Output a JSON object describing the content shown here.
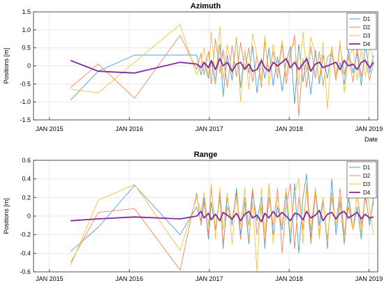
{
  "chart_data": [
    {
      "type": "line",
      "title": "Azimuth",
      "xlabel": "Date",
      "ylabel": "Positions [m]",
      "ylim": [
        -1.5,
        1.5
      ],
      "yticks": [
        1.5,
        1.0,
        0.5,
        0,
        -0.5,
        -1.0,
        -1.5
      ],
      "ytick_labels": [
        "1.5",
        "1.0",
        "0.5",
        "0",
        "-0.5",
        "-1.0",
        "-1.5"
      ],
      "xlim": [
        "2014-10-20",
        "2019-02-10"
      ],
      "xticks": [
        "2015-01-01",
        "2016-01-01",
        "2017-01-01",
        "2018-01-01",
        "2019-01-01"
      ],
      "xtick_labels": [
        "JAN 2015",
        "JAN 2016",
        "JAN 2017",
        "JAN 2018",
        "JAN 2019"
      ],
      "grid": true,
      "legend_position": "top-right",
      "colors": {
        "D1": "#4a9fd6",
        "D2": "#f0875a",
        "D3": "#f5c242",
        "D4": "#7e2a9c"
      },
      "series": [
        {
          "name": "D1",
          "x": [
            "2015-04-08",
            "2015-08-12",
            "2016-01-25",
            "2016-08-20",
            "2016-11-04",
            "2016-11-24",
            "2016-12-08",
            "2016-12-28",
            "2017-01-10",
            "2017-01-29",
            "2017-02-18",
            "2017-03-05",
            "2017-03-24",
            "2017-04-15",
            "2017-05-05",
            "2017-05-24",
            "2017-06-12",
            "2017-07-01",
            "2017-07-18",
            "2017-08-07",
            "2017-08-27",
            "2017-09-12",
            "2017-10-01",
            "2017-10-20",
            "2017-11-09",
            "2017-11-30",
            "2017-12-18",
            "2018-01-07",
            "2018-01-26",
            "2018-02-14",
            "2018-03-05",
            "2018-03-22",
            "2018-04-10",
            "2018-05-01",
            "2018-05-19",
            "2018-06-05",
            "2018-06-25",
            "2018-07-15",
            "2018-08-03",
            "2018-08-22",
            "2018-09-10",
            "2018-09-29",
            "2018-10-20",
            "2018-11-08",
            "2018-11-27",
            "2018-12-15",
            "2019-01-04",
            "2019-01-22"
          ],
          "values": [
            -0.95,
            -0.15,
            0.3,
            0.3,
            0.3,
            -0.25,
            0.1,
            -0.35,
            0.15,
            -0.5,
            0.6,
            -0.85,
            0.3,
            -0.4,
            0.8,
            -0.6,
            0.4,
            -0.2,
            0.55,
            -0.75,
            0.2,
            -0.35,
            0.5,
            -0.55,
            0.25,
            -0.7,
            0.1,
            0.55,
            -1.05,
            0.6,
            -0.45,
            0.25,
            -0.8,
            0.45,
            -0.5,
            0.3,
            -0.35,
            0.5,
            -0.3,
            0.1,
            -0.5,
            0.45,
            -0.2,
            0.35,
            -0.55,
            0.6,
            -0.2,
            0.3
          ]
        },
        {
          "name": "D2",
          "x": [
            "2015-04-08",
            "2015-08-12",
            "2016-01-25",
            "2016-08-20",
            "2016-11-04",
            "2016-11-24",
            "2016-12-08",
            "2016-12-28",
            "2017-01-10",
            "2017-01-29",
            "2017-02-18",
            "2017-03-05",
            "2017-03-24",
            "2017-04-15",
            "2017-05-05",
            "2017-05-24",
            "2017-06-12",
            "2017-07-01",
            "2017-07-18",
            "2017-08-07",
            "2017-08-27",
            "2017-09-12",
            "2017-10-01",
            "2017-10-20",
            "2017-11-09",
            "2017-11-30",
            "2017-12-18",
            "2018-01-07",
            "2018-01-26",
            "2018-02-14",
            "2018-03-05",
            "2018-03-22",
            "2018-04-10",
            "2018-05-01",
            "2018-05-19",
            "2018-06-05",
            "2018-06-25",
            "2018-07-15",
            "2018-08-03",
            "2018-08-22",
            "2018-09-10",
            "2018-09-29",
            "2018-10-20",
            "2018-11-08",
            "2018-11-27",
            "2018-12-15",
            "2019-01-04",
            "2019-01-22"
          ],
          "values": [
            -0.6,
            0.05,
            -0.9,
            0.85,
            -0.1,
            0.35,
            -0.25,
            0.4,
            -0.5,
            0.75,
            -0.2,
            0.45,
            -0.6,
            0.55,
            -0.3,
            0.65,
            -0.1,
            0.5,
            -0.45,
            0.3,
            -0.6,
            0.7,
            -0.2,
            0.4,
            -0.35,
            0.6,
            -0.5,
            0.3,
            0.85,
            -1.4,
            0.2,
            -0.6,
            0.55,
            -0.35,
            0.4,
            -0.55,
            0.25,
            0.35,
            -0.4,
            0.6,
            -0.25,
            0.3,
            -0.45,
            0.5,
            -0.3,
            0.2,
            -0.4,
            0.1
          ]
        },
        {
          "name": "D3",
          "x": [
            "2015-04-08",
            "2015-08-12",
            "2016-01-25",
            "2016-08-20",
            "2016-11-04",
            "2016-11-24",
            "2016-12-08",
            "2016-12-28",
            "2017-01-10",
            "2017-01-29",
            "2017-02-18",
            "2017-03-05",
            "2017-03-24",
            "2017-04-15",
            "2017-05-05",
            "2017-05-24",
            "2017-06-12",
            "2017-07-01",
            "2017-07-18",
            "2017-08-07",
            "2017-08-27",
            "2017-09-12",
            "2017-10-01",
            "2017-10-20",
            "2017-11-09",
            "2017-11-30",
            "2017-12-18",
            "2018-01-07",
            "2018-01-26",
            "2018-02-14",
            "2018-03-05",
            "2018-03-22",
            "2018-04-10",
            "2018-05-01",
            "2018-05-19",
            "2018-06-05",
            "2018-06-25",
            "2018-07-15",
            "2018-08-03",
            "2018-08-22",
            "2018-09-10",
            "2018-09-29",
            "2018-10-20",
            "2018-11-08",
            "2018-11-27",
            "2018-12-15",
            "2019-01-04",
            "2019-01-22"
          ],
          "values": [
            -0.65,
            -0.75,
            0.1,
            1.15,
            -0.25,
            0.05,
            0.5,
            -0.3,
            0.95,
            -0.45,
            1.1,
            -0.4,
            0.6,
            -0.2,
            0.8,
            -1.0,
            0.45,
            -0.65,
            0.9,
            0.3,
            -0.4,
            0.85,
            -0.55,
            0.6,
            -0.15,
            0.7,
            -0.3,
            0.45,
            0.65,
            -0.55,
            0.95,
            -0.2,
            0.8,
            0.3,
            -0.4,
            0.65,
            -1.2,
            0.55,
            -0.3,
            0.7,
            -0.75,
            0.2,
            0.5,
            -0.4,
            0.45,
            -0.3,
            0.6,
            0.1
          ]
        },
        {
          "name": "D4",
          "x": [
            "2015-04-08",
            "2015-08-12",
            "2016-01-25",
            "2016-08-20",
            "2016-11-04",
            "2016-11-24",
            "2016-12-08",
            "2016-12-28",
            "2017-01-10",
            "2017-01-29",
            "2017-02-18",
            "2017-03-05",
            "2017-03-24",
            "2017-04-15",
            "2017-05-05",
            "2017-05-24",
            "2017-06-12",
            "2017-07-01",
            "2017-07-18",
            "2017-08-07",
            "2017-08-27",
            "2017-09-12",
            "2017-10-01",
            "2017-10-20",
            "2017-11-09",
            "2017-11-30",
            "2017-12-18",
            "2018-01-07",
            "2018-01-26",
            "2018-02-14",
            "2018-03-05",
            "2018-03-22",
            "2018-04-10",
            "2018-05-01",
            "2018-05-19",
            "2018-06-05",
            "2018-06-25",
            "2018-07-15",
            "2018-08-03",
            "2018-08-22",
            "2018-09-10",
            "2018-09-29",
            "2018-10-20",
            "2018-11-08",
            "2018-11-27",
            "2018-12-15",
            "2019-01-04",
            "2019-01-22"
          ],
          "values": [
            0.15,
            -0.15,
            -0.2,
            0.1,
            0.05,
            -0.05,
            0.1,
            -0.05,
            0.15,
            -0.1,
            0.2,
            0.0,
            0.1,
            -0.15,
            0.05,
            0.1,
            -0.1,
            0.05,
            -0.15,
            -0.1,
            0.15,
            -0.05,
            -0.15,
            0.1,
            0.0,
            0.1,
            0.2,
            -0.05,
            0.1,
            -0.1,
            0.05,
            0.2,
            -0.15,
            0.05,
            0.1,
            -0.05,
            0.0,
            0.05,
            0.1,
            -0.1,
            0.15,
            0.0,
            0.05,
            -0.1,
            0.1,
            0.15,
            -0.05,
            0.1
          ]
        }
      ]
    },
    {
      "type": "line",
      "title": "Range",
      "xlabel": "",
      "ylabel": "Positions [m]",
      "ylim": [
        -0.6,
        0.6
      ],
      "yticks": [
        0.6,
        0.4,
        0.2,
        0,
        -0.2,
        -0.4,
        -0.6
      ],
      "ytick_labels": [
        "0.6",
        "0.4",
        "0.2",
        "0",
        "-0.2",
        "-0.4",
        "-0.6"
      ],
      "xlim": [
        "2014-10-20",
        "2019-02-10"
      ],
      "xticks": [
        "2015-01-01",
        "2016-01-01",
        "2017-01-01",
        "2018-01-01",
        "2019-01-01"
      ],
      "xtick_labels": [
        "JAN 2015",
        "JAN 2016",
        "JAN 2017",
        "JAN 2018",
        "JAN 2019"
      ],
      "grid": true,
      "legend_position": "top-right",
      "colors": {
        "D1": "#4a9fd6",
        "D2": "#f0875a",
        "D3": "#f5c242",
        "D4": "#7e2a9c"
      },
      "series": [
        {
          "name": "D1",
          "x": [
            "2015-04-08",
            "2015-08-12",
            "2016-01-25",
            "2016-08-20",
            "2016-11-04",
            "2016-11-24",
            "2016-12-08",
            "2016-12-28",
            "2017-01-10",
            "2017-01-29",
            "2017-02-18",
            "2017-03-05",
            "2017-03-24",
            "2017-04-15",
            "2017-05-05",
            "2017-05-24",
            "2017-06-12",
            "2017-07-01",
            "2017-07-18",
            "2017-08-07",
            "2017-08-27",
            "2017-09-12",
            "2017-10-01",
            "2017-10-20",
            "2017-11-09",
            "2017-11-30",
            "2017-12-18",
            "2018-01-07",
            "2018-01-26",
            "2018-02-14",
            "2018-03-05",
            "2018-03-22",
            "2018-04-10",
            "2018-05-01",
            "2018-05-19",
            "2018-06-05",
            "2018-06-25",
            "2018-07-15",
            "2018-08-03",
            "2018-08-22",
            "2018-09-10",
            "2018-09-29",
            "2018-10-20",
            "2018-11-08",
            "2018-11-27",
            "2018-12-15",
            "2019-01-04",
            "2019-01-22"
          ],
          "values": [
            -0.38,
            -0.12,
            0.33,
            -0.2,
            0.1,
            -0.05,
            0.2,
            -0.25,
            0.15,
            -0.15,
            0.25,
            -0.35,
            0.2,
            -0.1,
            0.3,
            -0.2,
            0.15,
            -0.3,
            0.25,
            -0.05,
            0.2,
            -0.35,
            0.35,
            -0.2,
            0.1,
            -0.15,
            0.25,
            -0.3,
            0.35,
            -0.4,
            0.2,
            0.45,
            -0.25,
            0.3,
            -0.1,
            0.2,
            -0.35,
            0.4,
            -0.2,
            0.15,
            -0.3,
            0.2,
            -0.15,
            0.1,
            -0.25,
            0.25,
            -0.1,
            0.2
          ]
        },
        {
          "name": "D2",
          "x": [
            "2015-04-08",
            "2015-08-12",
            "2016-01-25",
            "2016-08-20",
            "2016-11-04",
            "2016-11-24",
            "2016-12-08",
            "2016-12-28",
            "2017-01-10",
            "2017-01-29",
            "2017-02-18",
            "2017-03-05",
            "2017-03-24",
            "2017-04-15",
            "2017-05-05",
            "2017-05-24",
            "2017-06-12",
            "2017-07-01",
            "2017-07-18",
            "2017-08-07",
            "2017-08-27",
            "2017-09-12",
            "2017-10-01",
            "2017-10-20",
            "2017-11-09",
            "2017-11-30",
            "2017-12-18",
            "2018-01-07",
            "2018-01-26",
            "2018-02-14",
            "2018-03-05",
            "2018-03-22",
            "2018-04-10",
            "2018-05-01",
            "2018-05-19",
            "2018-06-05",
            "2018-06-25",
            "2018-07-15",
            "2018-08-03",
            "2018-08-22",
            "2018-09-10",
            "2018-09-29",
            "2018-10-20",
            "2018-11-08",
            "2018-11-27",
            "2018-12-15",
            "2019-01-04",
            "2019-01-22"
          ],
          "values": [
            -0.5,
            0.04,
            0.08,
            -0.58,
            0.25,
            -0.1,
            0.15,
            -0.2,
            0.3,
            -0.15,
            0.2,
            -0.3,
            0.1,
            -0.05,
            0.25,
            -0.25,
            0.2,
            -0.1,
            0.3,
            -0.2,
            0.1,
            -0.3,
            0.2,
            -0.1,
            0.3,
            -0.4,
            0.1,
            0.35,
            -0.35,
            0.2,
            -0.15,
            0.3,
            -0.3,
            0.25,
            -0.2,
            0.15,
            -0.25,
            0.2,
            -0.1,
            0.3,
            -0.2,
            0.1,
            -0.15,
            0.25,
            -0.1,
            0.2,
            -0.05,
            0.15
          ]
        },
        {
          "name": "D3",
          "x": [
            "2015-04-08",
            "2015-08-12",
            "2016-01-25",
            "2016-08-20",
            "2016-11-04",
            "2016-11-24",
            "2016-12-08",
            "2016-12-28",
            "2017-01-10",
            "2017-01-29",
            "2017-02-18",
            "2017-03-05",
            "2017-03-24",
            "2017-04-15",
            "2017-05-05",
            "2017-05-24",
            "2017-06-12",
            "2017-07-01",
            "2017-07-18",
            "2017-08-07",
            "2017-08-27",
            "2017-09-12",
            "2017-10-01",
            "2017-10-20",
            "2017-11-09",
            "2017-11-30",
            "2017-12-18",
            "2018-01-07",
            "2018-01-26",
            "2018-02-14",
            "2018-03-05",
            "2018-03-22",
            "2018-04-10",
            "2018-05-01",
            "2018-05-19",
            "2018-06-05",
            "2018-06-25",
            "2018-07-15",
            "2018-08-03",
            "2018-08-22",
            "2018-09-10",
            "2018-09-29",
            "2018-10-20",
            "2018-11-08",
            "2018-11-27",
            "2018-12-15",
            "2019-01-04",
            "2019-01-22"
          ],
          "values": [
            -0.53,
            0.17,
            0.34,
            -0.37,
            0.2,
            0.05,
            0.25,
            -0.1,
            0.35,
            -0.25,
            0.3,
            -0.15,
            0.25,
            -0.3,
            0.2,
            -0.1,
            0.3,
            -0.25,
            0.15,
            -0.6,
            0.3,
            -0.2,
            0.35,
            -0.3,
            0.2,
            -0.1,
            0.3,
            -0.2,
            0.25,
            0.4,
            -0.3,
            0.35,
            -0.15,
            0.3,
            -0.25,
            0.2,
            -0.3,
            0.25,
            -0.1,
            0.2,
            -0.25,
            0.3,
            -0.15,
            0.25,
            -0.2,
            0.3,
            0.1,
            -0.2
          ]
        },
        {
          "name": "D4",
          "x": [
            "2015-04-08",
            "2015-08-12",
            "2016-01-25",
            "2016-08-20",
            "2016-11-04",
            "2016-11-24",
            "2016-12-08",
            "2016-12-28",
            "2017-01-10",
            "2017-01-29",
            "2017-02-18",
            "2017-03-05",
            "2017-03-24",
            "2017-04-15",
            "2017-05-05",
            "2017-05-24",
            "2017-06-12",
            "2017-07-01",
            "2017-07-18",
            "2017-08-07",
            "2017-08-27",
            "2017-09-12",
            "2017-10-01",
            "2017-10-20",
            "2017-11-09",
            "2017-11-30",
            "2017-12-18",
            "2018-01-07",
            "2018-01-26",
            "2018-02-14",
            "2018-03-05",
            "2018-03-22",
            "2018-04-10",
            "2018-05-01",
            "2018-05-19",
            "2018-06-05",
            "2018-06-25",
            "2018-07-15",
            "2018-08-03",
            "2018-08-22",
            "2018-09-10",
            "2018-09-29",
            "2018-10-20",
            "2018-11-08",
            "2018-11-27",
            "2018-12-15",
            "2019-01-04",
            "2019-01-22"
          ],
          "values": [
            -0.05,
            -0.03,
            -0.01,
            -0.03,
            0.0,
            0.05,
            -0.02,
            0.03,
            -0.04,
            0.02,
            -0.05,
            0.04,
            0.01,
            -0.03,
            0.03,
            -0.05,
            0.02,
            0.05,
            -0.02,
            0.01,
            -0.06,
            0.03,
            -0.02,
            0.05,
            -0.01,
            0.04,
            0.0,
            -0.05,
            0.03,
            0.02,
            -0.04,
            0.05,
            -0.02,
            0.01,
            0.06,
            -0.05,
            0.02,
            0.04,
            -0.03,
            0.03,
            0.05,
            -0.02,
            0.01,
            0.04,
            -0.03,
            0.02,
            -0.02,
            -0.01
          ]
        }
      ]
    }
  ]
}
